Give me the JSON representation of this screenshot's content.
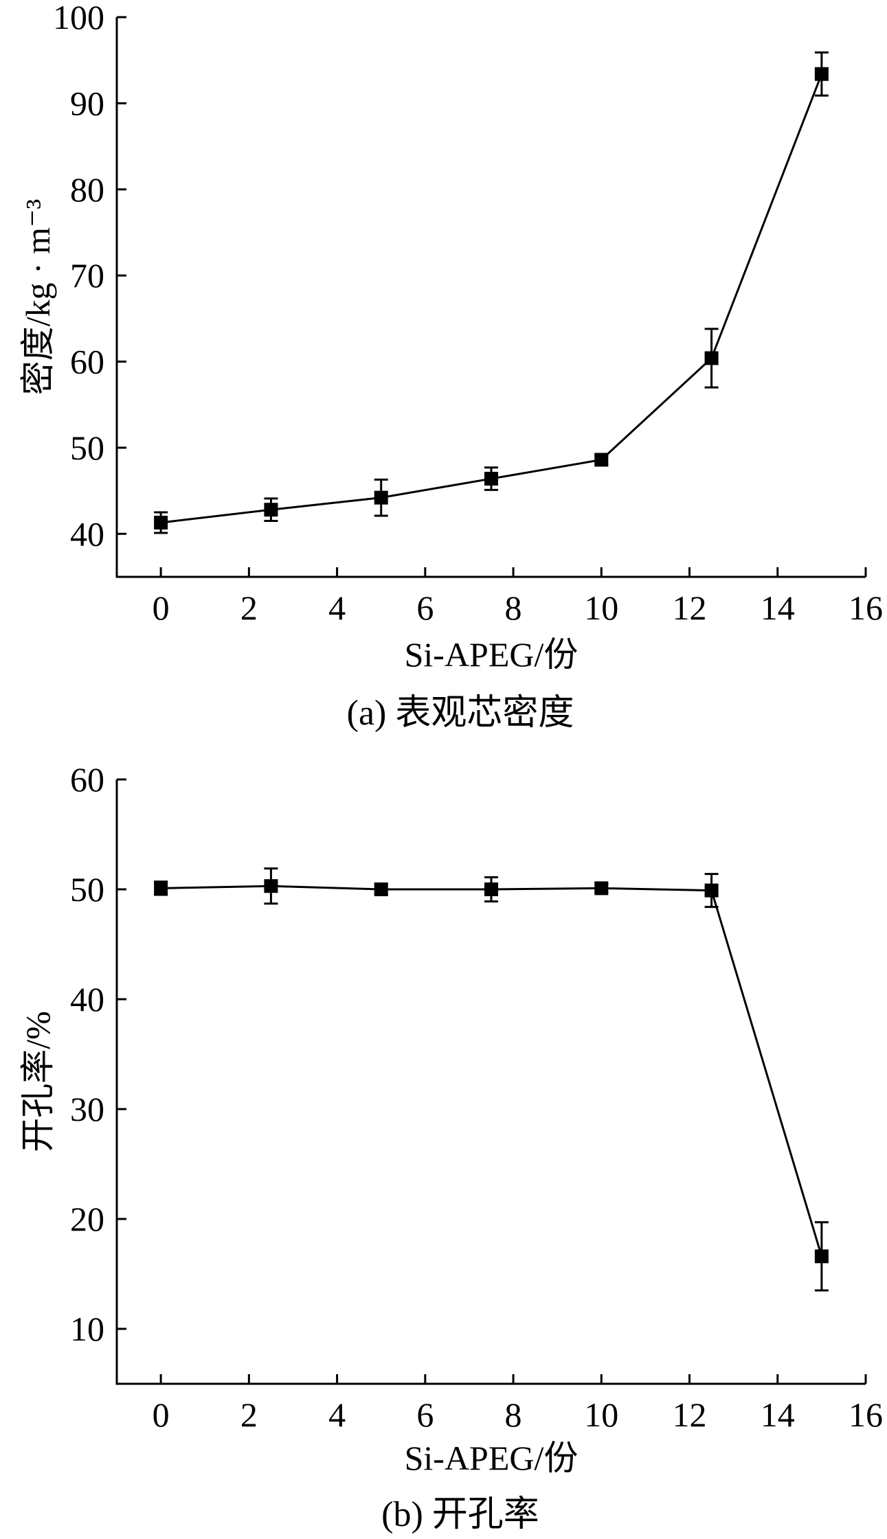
{
  "chart_data": [
    {
      "type": "line",
      "caption": "(a) 表观芯密度",
      "xlabel": "Si-APEG/份",
      "ylabel": "密度/kg · m⁻³",
      "xlim": [
        -1,
        16
      ],
      "ylim": [
        35,
        100
      ],
      "xticks": [
        0,
        2,
        4,
        6,
        8,
        10,
        12,
        14,
        16
      ],
      "yticks": [
        40,
        50,
        60,
        70,
        80,
        90,
        100
      ],
      "grid": false,
      "series": [
        {
          "marker": "square",
          "color": "#000000",
          "x": [
            0,
            2.5,
            5,
            7.5,
            10,
            12.5,
            15
          ],
          "y": [
            41.3,
            42.8,
            44.2,
            46.4,
            48.6,
            60.4,
            93.4
          ],
          "error": [
            1.2,
            1.3,
            2.1,
            1.3,
            0.5,
            3.4,
            2.5
          ]
        }
      ]
    },
    {
      "type": "line",
      "caption": "(b) 开孔率",
      "xlabel": "Si-APEG/份",
      "ylabel": "开孔率/%",
      "xlim": [
        -1,
        16
      ],
      "ylim": [
        5,
        60
      ],
      "xticks": [
        0,
        2,
        4,
        6,
        8,
        10,
        12,
        14,
        16
      ],
      "yticks": [
        10,
        20,
        30,
        40,
        50,
        60
      ],
      "grid": false,
      "series": [
        {
          "marker": "square",
          "color": "#000000",
          "x": [
            0,
            2.5,
            5,
            7.5,
            10,
            12.5,
            15
          ],
          "y": [
            50.1,
            50.3,
            50.0,
            50.0,
            50.1,
            49.9,
            16.6
          ],
          "error": [
            0.6,
            1.6,
            0.4,
            1.1,
            0.4,
            1.5,
            3.1
          ]
        }
      ]
    }
  ]
}
